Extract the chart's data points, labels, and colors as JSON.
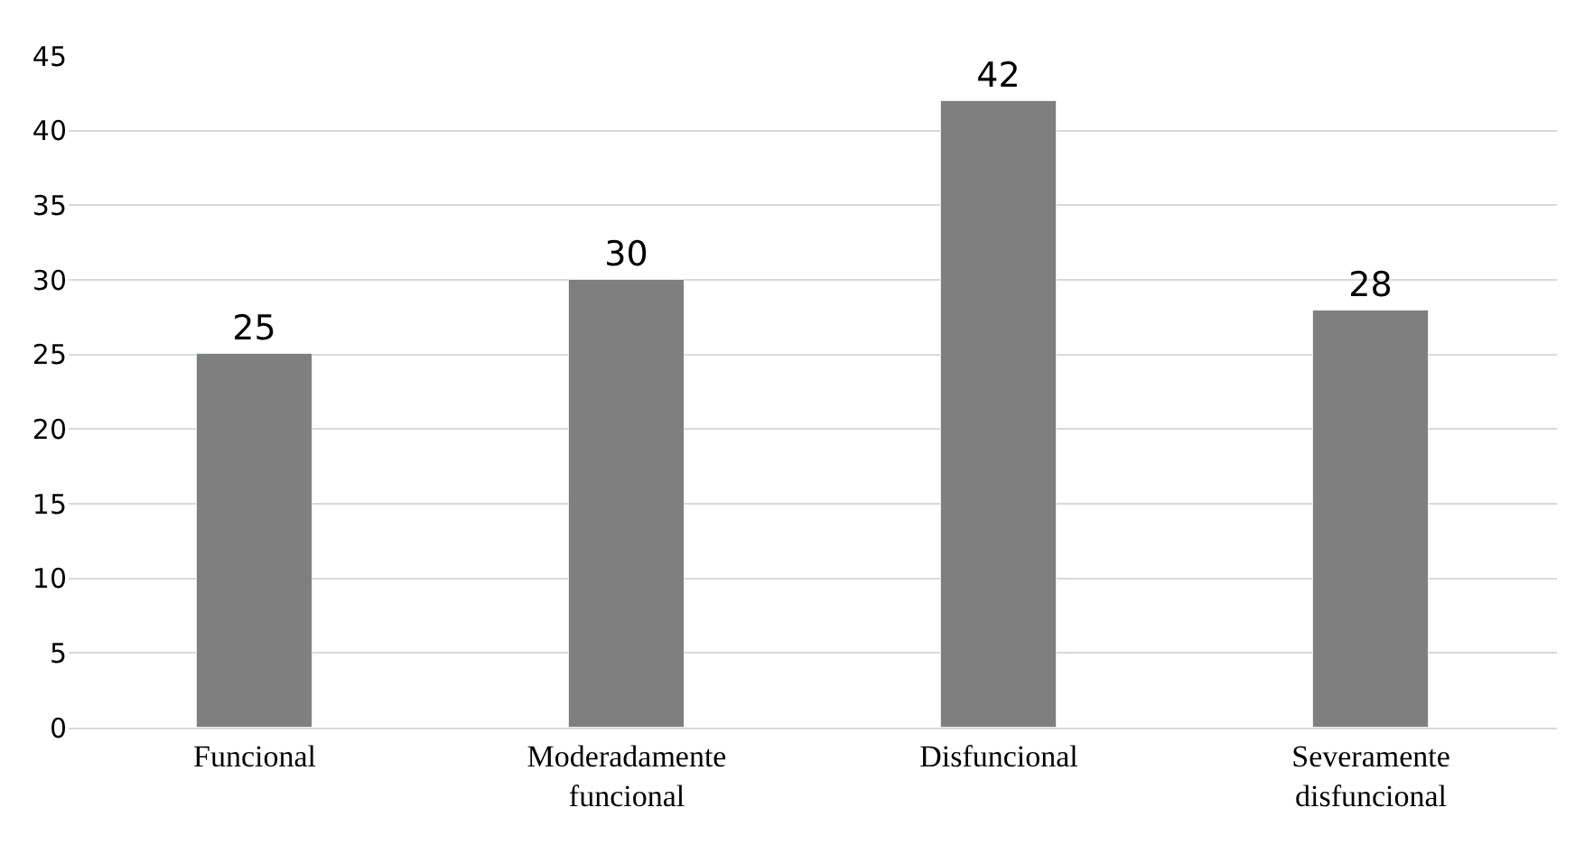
{
  "chart_data": {
    "type": "bar",
    "categories": [
      "Funcional",
      "Moderadamente\nfuncional",
      "Disfuncional",
      "Severamente\ndisfuncional"
    ],
    "values": [
      25,
      30,
      42,
      28
    ],
    "color": "#7f7f7f",
    "ylim": [
      0,
      45
    ],
    "yticks": [
      0,
      5,
      10,
      15,
      20,
      25,
      30,
      35,
      40,
      45
    ],
    "grid": "y",
    "data_labels": true
  }
}
